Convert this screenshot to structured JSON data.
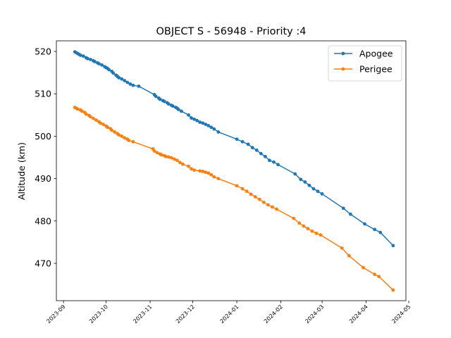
{
  "chart_data": {
    "type": "line",
    "title": "OBJECT S - 56948 - Priority :4",
    "xlabel": "",
    "ylabel": "Altitude (km)",
    "x_axis_type": "date",
    "xlim": [
      "2023-08-27",
      "2024-04-29"
    ],
    "ylim": [
      461.2,
      522.5
    ],
    "x_ticks": [
      "2023-09",
      "2023-10",
      "2023-11",
      "2023-12",
      "2024-01",
      "2024-02",
      "2024-03",
      "2024-04",
      "2024-05"
    ],
    "y_ticks": [
      470,
      480,
      490,
      500,
      510,
      520
    ],
    "grid": false,
    "legend": {
      "position": "top-right"
    },
    "markers": "circle",
    "series": [
      {
        "name": "Apogee",
        "color": "#1f77b4",
        "points": [
          [
            "2023-09-09",
            519.9
          ],
          [
            "2023-09-10",
            519.7
          ],
          [
            "2023-09-11",
            519.5
          ],
          [
            "2023-09-12",
            519.3
          ],
          [
            "2023-09-13",
            519.1
          ],
          [
            "2023-09-15",
            518.9
          ],
          [
            "2023-09-17",
            518.5
          ],
          [
            "2023-09-18",
            518.3
          ],
          [
            "2023-09-20",
            518.1
          ],
          [
            "2023-09-22",
            517.8
          ],
          [
            "2023-09-23",
            517.6
          ],
          [
            "2023-09-25",
            517.3
          ],
          [
            "2023-09-26",
            517.1
          ],
          [
            "2023-09-28",
            516.8
          ],
          [
            "2023-09-30",
            516.4
          ],
          [
            "2023-10-01",
            516.2
          ],
          [
            "2023-10-02",
            516.0
          ],
          [
            "2023-10-03",
            515.7
          ],
          [
            "2023-10-05",
            515.3
          ],
          [
            "2023-10-06",
            514.9
          ],
          [
            "2023-10-08",
            514.4
          ],
          [
            "2023-10-09",
            514.1
          ],
          [
            "2023-10-10",
            513.8
          ],
          [
            "2023-10-12",
            513.5
          ],
          [
            "2023-10-14",
            513.1
          ],
          [
            "2023-10-16",
            512.7
          ],
          [
            "2023-10-18",
            512.3
          ],
          [
            "2023-10-20",
            512.0
          ],
          [
            "2023-10-24",
            511.8
          ],
          [
            "2023-11-04",
            509.8
          ],
          [
            "2023-11-05",
            509.4
          ],
          [
            "2023-11-07",
            509.0
          ],
          [
            "2023-11-08",
            508.7
          ],
          [
            "2023-11-10",
            508.4
          ],
          [
            "2023-11-11",
            508.2
          ],
          [
            "2023-11-13",
            507.9
          ],
          [
            "2023-11-14",
            507.6
          ],
          [
            "2023-11-16",
            507.3
          ],
          [
            "2023-11-17",
            507.1
          ],
          [
            "2023-11-19",
            506.8
          ],
          [
            "2023-11-20",
            506.6
          ],
          [
            "2023-11-21",
            506.3
          ],
          [
            "2023-11-23",
            505.9
          ],
          [
            "2023-11-28",
            505.0
          ],
          [
            "2023-11-30",
            504.3
          ],
          [
            "2023-12-02",
            504.0
          ],
          [
            "2023-12-04",
            503.7
          ],
          [
            "2023-12-06",
            503.3
          ],
          [
            "2023-12-08",
            503.1
          ],
          [
            "2023-12-10",
            502.8
          ],
          [
            "2023-12-12",
            502.5
          ],
          [
            "2023-12-14",
            502.1
          ],
          [
            "2023-12-16",
            501.7
          ],
          [
            "2023-12-19",
            501.0
          ],
          [
            "2024-01-01",
            499.3
          ],
          [
            "2024-01-05",
            498.7
          ],
          [
            "2024-01-09",
            498.1
          ],
          [
            "2024-01-12",
            497.3
          ],
          [
            "2024-01-15",
            496.7
          ],
          [
            "2024-01-18",
            495.9
          ],
          [
            "2024-01-21",
            495.2
          ],
          [
            "2024-01-24",
            494.3
          ],
          [
            "2024-01-27",
            493.9
          ],
          [
            "2024-01-30",
            493.3
          ],
          [
            "2024-02-11",
            491.1
          ],
          [
            "2024-02-15",
            489.8
          ],
          [
            "2024-02-18",
            489.2
          ],
          [
            "2024-02-21",
            488.4
          ],
          [
            "2024-02-24",
            487.6
          ],
          [
            "2024-02-27",
            487.0
          ],
          [
            "2024-03-01",
            486.4
          ],
          [
            "2024-03-16",
            483.0
          ],
          [
            "2024-03-21",
            481.6
          ],
          [
            "2024-03-31",
            479.3
          ],
          [
            "2024-04-07",
            478.0
          ],
          [
            "2024-04-11",
            477.3
          ],
          [
            "2024-04-20",
            474.2
          ]
        ]
      },
      {
        "name": "Perigee",
        "color": "#ff7f0e",
        "points": [
          [
            "2023-09-09",
            506.8
          ],
          [
            "2023-09-10",
            506.6
          ],
          [
            "2023-09-11",
            506.4
          ],
          [
            "2023-09-13",
            506.2
          ],
          [
            "2023-09-14",
            505.9
          ],
          [
            "2023-09-16",
            505.6
          ],
          [
            "2023-09-17",
            505.2
          ],
          [
            "2023-09-19",
            504.9
          ],
          [
            "2023-09-20",
            504.6
          ],
          [
            "2023-09-22",
            504.2
          ],
          [
            "2023-09-24",
            503.8
          ],
          [
            "2023-09-26",
            503.4
          ],
          [
            "2023-09-27",
            503.1
          ],
          [
            "2023-09-29",
            502.8
          ],
          [
            "2023-10-01",
            502.4
          ],
          [
            "2023-10-02",
            502.1
          ],
          [
            "2023-10-04",
            501.8
          ],
          [
            "2023-10-05",
            501.4
          ],
          [
            "2023-10-07",
            501.0
          ],
          [
            "2023-10-09",
            500.6
          ],
          [
            "2023-10-10",
            500.3
          ],
          [
            "2023-10-12",
            500.0
          ],
          [
            "2023-10-14",
            499.6
          ],
          [
            "2023-10-16",
            499.3
          ],
          [
            "2023-10-17",
            499.0
          ],
          [
            "2023-10-20",
            498.7
          ],
          [
            "2023-11-03",
            497.0
          ],
          [
            "2023-11-04",
            496.5
          ],
          [
            "2023-11-06",
            496.1
          ],
          [
            "2023-11-08",
            495.8
          ],
          [
            "2023-11-09",
            495.6
          ],
          [
            "2023-11-11",
            495.4
          ],
          [
            "2023-11-12",
            495.2
          ],
          [
            "2023-11-14",
            495.1
          ],
          [
            "2023-11-16",
            494.9
          ],
          [
            "2023-11-18",
            494.6
          ],
          [
            "2023-11-20",
            494.3
          ],
          [
            "2023-11-22",
            493.8
          ],
          [
            "2023-11-24",
            493.4
          ],
          [
            "2023-11-28",
            492.9
          ],
          [
            "2023-11-30",
            492.3
          ],
          [
            "2023-12-02",
            492.0
          ],
          [
            "2023-12-06",
            491.8
          ],
          [
            "2023-12-08",
            491.7
          ],
          [
            "2023-12-10",
            491.5
          ],
          [
            "2023-12-12",
            491.3
          ],
          [
            "2023-12-14",
            490.9
          ],
          [
            "2023-12-16",
            490.4
          ],
          [
            "2023-12-19",
            490.0
          ],
          [
            "2024-01-01",
            488.3
          ],
          [
            "2024-01-05",
            487.6
          ],
          [
            "2024-01-08",
            487.0
          ],
          [
            "2024-01-11",
            486.3
          ],
          [
            "2024-01-14",
            485.7
          ],
          [
            "2024-01-17",
            485.1
          ],
          [
            "2024-01-20",
            484.4
          ],
          [
            "2024-01-23",
            483.8
          ],
          [
            "2024-01-26",
            483.3
          ],
          [
            "2024-01-29",
            482.8
          ],
          [
            "2024-02-10",
            480.6
          ],
          [
            "2024-02-14",
            479.5
          ],
          [
            "2024-02-17",
            478.8
          ],
          [
            "2024-02-20",
            478.2
          ],
          [
            "2024-02-23",
            477.6
          ],
          [
            "2024-02-26",
            477.1
          ],
          [
            "2024-02-29",
            476.7
          ],
          [
            "2024-03-15",
            473.6
          ],
          [
            "2024-03-20",
            471.8
          ],
          [
            "2024-03-30",
            469.0
          ],
          [
            "2024-04-07",
            467.4
          ],
          [
            "2024-04-10",
            466.9
          ],
          [
            "2024-04-20",
            463.7
          ]
        ]
      }
    ]
  }
}
